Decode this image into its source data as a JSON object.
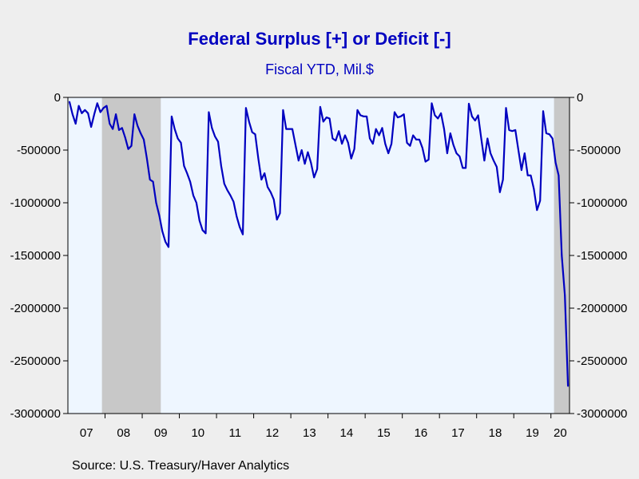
{
  "chart_data": {
    "type": "line",
    "title": "Federal Surplus [+] or Deficit [-]",
    "subtitle": "Fiscal YTD, Mil.$",
    "source": "Source:  U.S. Treasury/Haver Analytics",
    "xlabel": "",
    "ylabel": "",
    "x_tick_labels": [
      "07",
      "08",
      "09",
      "10",
      "11",
      "12",
      "13",
      "14",
      "15",
      "16",
      "17",
      "18",
      "19",
      "20"
    ],
    "y_ticks": [
      0,
      -500000,
      -1000000,
      -1500000,
      -2000000,
      -2500000,
      -3000000
    ],
    "ylim": [
      -3000000,
      0
    ],
    "grid": false,
    "x_range": [
      "2007-01",
      "2020-06"
    ],
    "shaded_regions": [
      {
        "start": "2007-12",
        "end": "2009-06",
        "label": "recession"
      },
      {
        "start": "2020-02",
        "end": "2020-06",
        "label": "recession"
      }
    ],
    "colors": {
      "line": "#0000c0",
      "plot_background": "#eef6ff",
      "recession_shading": "#c8c8c8",
      "title": "#0000c0"
    },
    "series": [
      {
        "name": "Federal Surplus or Deficit, Fiscal YTD",
        "x": [
          "2007-01",
          "2007-02",
          "2007-03",
          "2007-04",
          "2007-05",
          "2007-06",
          "2007-07",
          "2007-08",
          "2007-09",
          "2007-10",
          "2007-11",
          "2007-12",
          "2008-01",
          "2008-02",
          "2008-03",
          "2008-04",
          "2008-05",
          "2008-06",
          "2008-07",
          "2008-08",
          "2008-09",
          "2008-10",
          "2008-11",
          "2008-12",
          "2009-01",
          "2009-02",
          "2009-03",
          "2009-04",
          "2009-05",
          "2009-06",
          "2009-07",
          "2009-08",
          "2009-09",
          "2009-10",
          "2009-11",
          "2009-12",
          "2010-01",
          "2010-02",
          "2010-03",
          "2010-04",
          "2010-05",
          "2010-06",
          "2010-07",
          "2010-08",
          "2010-09",
          "2010-10",
          "2010-11",
          "2010-12",
          "2011-01",
          "2011-02",
          "2011-03",
          "2011-04",
          "2011-05",
          "2011-06",
          "2011-07",
          "2011-08",
          "2011-09",
          "2011-10",
          "2011-11",
          "2011-12",
          "2012-01",
          "2012-02",
          "2012-03",
          "2012-04",
          "2012-05",
          "2012-06",
          "2012-07",
          "2012-08",
          "2012-09",
          "2012-10",
          "2012-11",
          "2012-12",
          "2013-01",
          "2013-02",
          "2013-03",
          "2013-04",
          "2013-05",
          "2013-06",
          "2013-07",
          "2013-08",
          "2013-09",
          "2013-10",
          "2013-11",
          "2013-12",
          "2014-01",
          "2014-02",
          "2014-03",
          "2014-04",
          "2014-05",
          "2014-06",
          "2014-07",
          "2014-08",
          "2014-09",
          "2014-10",
          "2014-11",
          "2014-12",
          "2015-01",
          "2015-02",
          "2015-03",
          "2015-04",
          "2015-05",
          "2015-06",
          "2015-07",
          "2015-08",
          "2015-09",
          "2015-10",
          "2015-11",
          "2015-12",
          "2016-01",
          "2016-02",
          "2016-03",
          "2016-04",
          "2016-05",
          "2016-06",
          "2016-07",
          "2016-08",
          "2016-09",
          "2016-10",
          "2016-11",
          "2016-12",
          "2017-01",
          "2017-02",
          "2017-03",
          "2017-04",
          "2017-05",
          "2017-06",
          "2017-07",
          "2017-08",
          "2017-09",
          "2017-10",
          "2017-11",
          "2017-12",
          "2018-01",
          "2018-02",
          "2018-03",
          "2018-04",
          "2018-05",
          "2018-06",
          "2018-07",
          "2018-08",
          "2018-09",
          "2018-10",
          "2018-11",
          "2018-12",
          "2019-01",
          "2019-02",
          "2019-03",
          "2019-04",
          "2019-05",
          "2019-06",
          "2019-07",
          "2019-08",
          "2019-09",
          "2019-10",
          "2019-11",
          "2019-12",
          "2020-01",
          "2020-02",
          "2020-03",
          "2020-04",
          "2020-05",
          "2020-06"
        ],
        "values": [
          -40000,
          -160000,
          -250000,
          -80000,
          -150000,
          -120000,
          -150000,
          -280000,
          -160000,
          -55000,
          -140000,
          -100000,
          -80000,
          -250000,
          -300000,
          -160000,
          -310000,
          -290000,
          -380000,
          -490000,
          -460000,
          -160000,
          -270000,
          -340000,
          -400000,
          -580000,
          -780000,
          -800000,
          -1000000,
          -1120000,
          -1270000,
          -1370000,
          -1420000,
          -180000,
          -300000,
          -390000,
          -430000,
          -650000,
          -720000,
          -800000,
          -930000,
          -1000000,
          -1170000,
          -1260000,
          -1290000,
          -140000,
          -290000,
          -370000,
          -420000,
          -650000,
          -820000,
          -880000,
          -930000,
          -990000,
          -1130000,
          -1230000,
          -1300000,
          -100000,
          -230000,
          -330000,
          -350000,
          -580000,
          -780000,
          -720000,
          -850000,
          -900000,
          -970000,
          -1160000,
          -1100000,
          -120000,
          -300000,
          -300000,
          -300000,
          -450000,
          -600000,
          -500000,
          -630000,
          -520000,
          -620000,
          -760000,
          -680000,
          -90000,
          -230000,
          -190000,
          -200000,
          -390000,
          -410000,
          -320000,
          -440000,
          -360000,
          -430000,
          -580000,
          -490000,
          -120000,
          -170000,
          -180000,
          -180000,
          -390000,
          -440000,
          -300000,
          -360000,
          -290000,
          -440000,
          -530000,
          -440000,
          -140000,
          -190000,
          -180000,
          -160000,
          -430000,
          -460000,
          -360000,
          -400000,
          -400000,
          -480000,
          -610000,
          -590000,
          -55000,
          -170000,
          -200000,
          -150000,
          -300000,
          -530000,
          -340000,
          -450000,
          -530000,
          -560000,
          -670000,
          -670000,
          -60000,
          -180000,
          -220000,
          -170000,
          -390000,
          -600000,
          -390000,
          -530000,
          -600000,
          -660000,
          -900000,
          -780000,
          -100000,
          -310000,
          -320000,
          -310000,
          -500000,
          -690000,
          -530000,
          -740000,
          -740000,
          -870000,
          -1070000,
          -980000,
          -130000,
          -340000,
          -350000,
          -390000,
          -620000,
          -740000,
          -1500000,
          -1880000,
          -2740000
        ]
      }
    ]
  }
}
